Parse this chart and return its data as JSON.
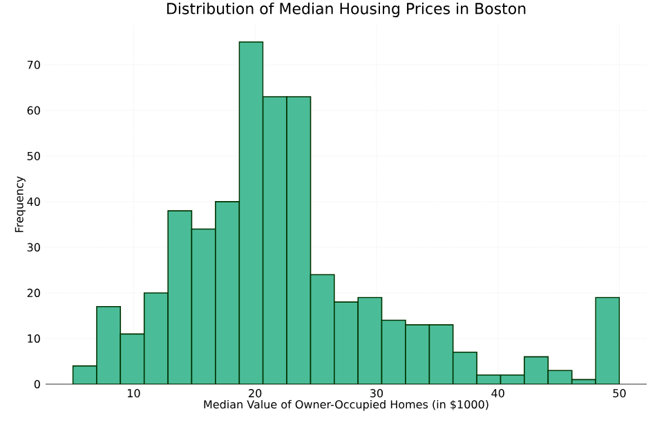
{
  "chart_data": {
    "type": "histogram",
    "title": "Distribution of Median Housing Prices in Boston",
    "xlabel": "Median Value of Owner-Occupied Homes (in $1000)",
    "ylabel": "Frequency",
    "bins": [
      5,
      6.96,
      8.91,
      10.87,
      12.83,
      14.78,
      16.74,
      18.7,
      20.65,
      22.61,
      24.57,
      26.52,
      28.48,
      30.43,
      32.39,
      34.35,
      36.3,
      38.26,
      40.22,
      42.17,
      44.13,
      46.09,
      48.04,
      50
    ],
    "values": [
      4,
      17,
      11,
      20,
      38,
      34,
      40,
      75,
      63,
      63,
      24,
      18,
      19,
      14,
      13,
      13,
      7,
      2,
      2,
      6,
      3,
      1,
      19
    ],
    "color": "#4bbc98",
    "xlim": [
      2.75,
      52.25
    ],
    "ylim": [
      0,
      78.75
    ],
    "xticks": [
      10,
      20,
      30,
      40,
      50
    ],
    "yticks": [
      0,
      10,
      20,
      30,
      40,
      50,
      60,
      70
    ],
    "grid": true
  }
}
